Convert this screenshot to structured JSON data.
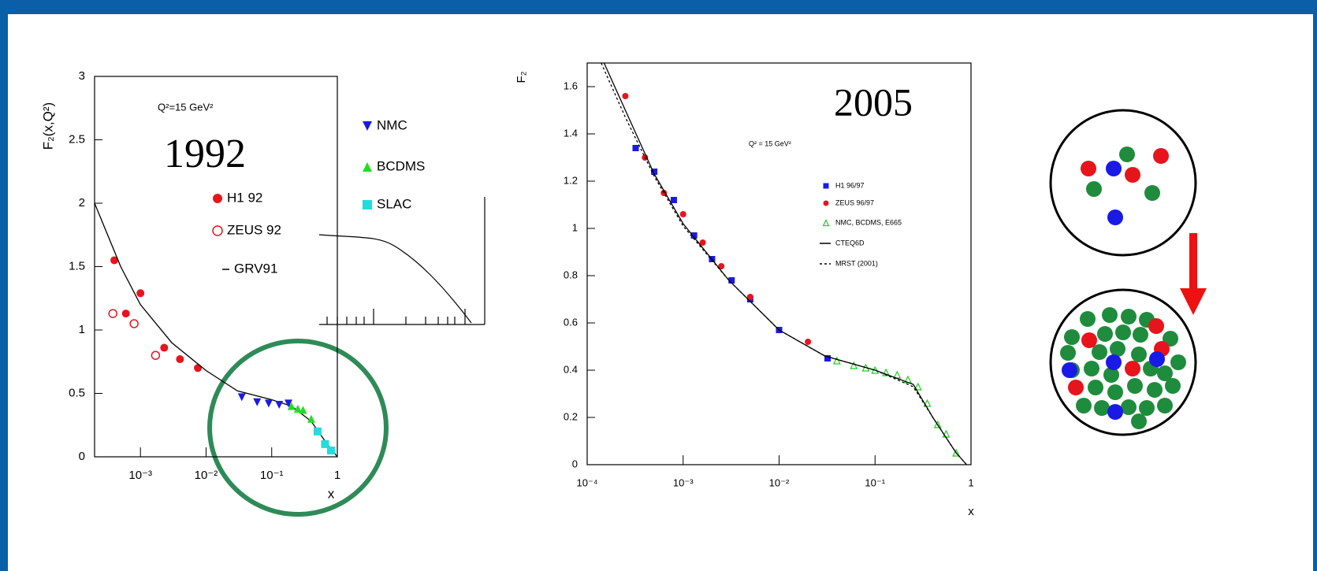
{
  "chart_data": [
    {
      "type": "scatter",
      "title": "1992",
      "annotations": [
        "Q²=15 GeV²"
      ],
      "y_label": "F₂(x,Q²)",
      "x_label": "x",
      "xscale": "log",
      "xlim": [
        0.0002,
        1
      ],
      "ylim": [
        0,
        3
      ],
      "xticks": [
        {
          "value": 0.001,
          "label": "10⁻³"
        },
        {
          "value": 0.01,
          "label": "10⁻²"
        },
        {
          "value": 0.1,
          "label": "10⁻¹"
        },
        1
      ],
      "yticks": [
        0,
        0.5,
        1,
        1.5,
        2,
        2.5,
        3
      ],
      "series": [
        {
          "name": "H1 92",
          "color": "#e8141c",
          "marker": "circle",
          "x": [
            0.0004,
            0.0006,
            0.001,
            0.0023,
            0.004,
            0.0075
          ],
          "values": [
            1.55,
            1.13,
            1.29,
            0.86,
            0.77,
            0.7
          ]
        },
        {
          "name": "ZEUS 92",
          "color": "#e8141c",
          "marker": "open-circle",
          "x": [
            0.00038,
            0.0008,
            0.0017
          ],
          "values": [
            1.13,
            1.05,
            0.8
          ]
        },
        {
          "name": "GRV91",
          "color": "#000000",
          "marker": "line",
          "x": [
            0.0002,
            0.0005,
            0.001,
            0.003,
            0.01,
            0.03,
            0.1,
            0.2,
            0.4,
            0.7,
            1
          ],
          "values": [
            2.0,
            1.5,
            1.2,
            0.9,
            0.68,
            0.52,
            0.45,
            0.4,
            0.28,
            0.1,
            0
          ]
        },
        {
          "name": "NMC",
          "color": "#1a1ae6",
          "marker": "triangle-down",
          "x": [
            0.035,
            0.06,
            0.09,
            0.13,
            0.18
          ],
          "values": [
            0.47,
            0.43,
            0.42,
            0.41,
            0.42
          ]
        },
        {
          "name": "BCDMS",
          "color": "#22dd22",
          "marker": "triangle",
          "x": [
            0.2,
            0.25,
            0.3,
            0.4
          ],
          "values": [
            0.4,
            0.38,
            0.37,
            0.3
          ]
        },
        {
          "name": "SLAC",
          "color": "#22dddd",
          "marker": "square",
          "x": [
            0.5,
            0.65,
            0.8
          ],
          "values": [
            0.2,
            0.1,
            0.05
          ]
        }
      ]
    },
    {
      "type": "scatter",
      "title": "2005",
      "annotations": [
        "Q² = 15 GeV²"
      ],
      "y_label": "F₂",
      "x_label": "x",
      "xscale": "log",
      "xlim": [
        0.0001,
        1
      ],
      "ylim": [
        0,
        1.7
      ],
      "xticks": [
        {
          "value": 0.0001,
          "label": "10⁻⁴"
        },
        {
          "value": 0.001,
          "label": "10⁻³"
        },
        {
          "value": 0.01,
          "label": "10⁻²"
        },
        {
          "value": 0.1,
          "label": "10⁻¹"
        },
        1
      ],
      "yticks": [
        0,
        0.2,
        0.4,
        0.6,
        0.8,
        1,
        1.2,
        1.4,
        1.6
      ],
      "series": [
        {
          "name": "H1 96/97",
          "color": "#1a1ae6",
          "marker": "square",
          "x": [
            0.00032,
            0.0005,
            0.0008,
            0.0013,
            0.002,
            0.0032,
            0.005,
            0.01,
            0.032
          ],
          "values": [
            1.34,
            1.24,
            1.12,
            0.97,
            0.87,
            0.78,
            0.7,
            0.57,
            0.45
          ]
        },
        {
          "name": "ZEUS 96/97",
          "color": "#e8141c",
          "marker": "circle",
          "x": [
            0.00025,
            0.0004,
            0.00063,
            0.001,
            0.0016,
            0.0025,
            0.005,
            0.02
          ],
          "values": [
            1.56,
            1.3,
            1.15,
            1.06,
            0.94,
            0.84,
            0.71,
            0.52
          ]
        },
        {
          "name": "NMC, BCDMS, E665",
          "color": "#22cc22",
          "marker": "open-triangle",
          "x": [
            0.04,
            0.06,
            0.08,
            0.1,
            0.13,
            0.17,
            0.22,
            0.28,
            0.35,
            0.45,
            0.55,
            0.7
          ],
          "values": [
            0.44,
            0.42,
            0.41,
            0.4,
            0.39,
            0.38,
            0.36,
            0.33,
            0.26,
            0.17,
            0.13,
            0.05
          ]
        },
        {
          "name": "CTEQ6D",
          "color": "#000000",
          "marker": "line",
          "x": [
            0.00015,
            0.00025,
            0.0005,
            0.001,
            0.003,
            0.01,
            0.03,
            0.1,
            0.25,
            0.4,
            0.7,
            0.9
          ],
          "values": [
            1.7,
            1.5,
            1.23,
            1.02,
            0.78,
            0.57,
            0.46,
            0.4,
            0.34,
            0.2,
            0.05,
            0
          ]
        },
        {
          "name": "MRST (2001)",
          "color": "#000000",
          "marker": "dashed",
          "x": [
            0.00014,
            0.00025,
            0.0005,
            0.001,
            0.003,
            0.01,
            0.03,
            0.1,
            0.25,
            0.4,
            0.7,
            0.9
          ],
          "values": [
            1.7,
            1.47,
            1.22,
            1.01,
            0.78,
            0.57,
            0.46,
            0.4,
            0.33,
            0.2,
            0.05,
            0
          ]
        }
      ]
    }
  ]
}
